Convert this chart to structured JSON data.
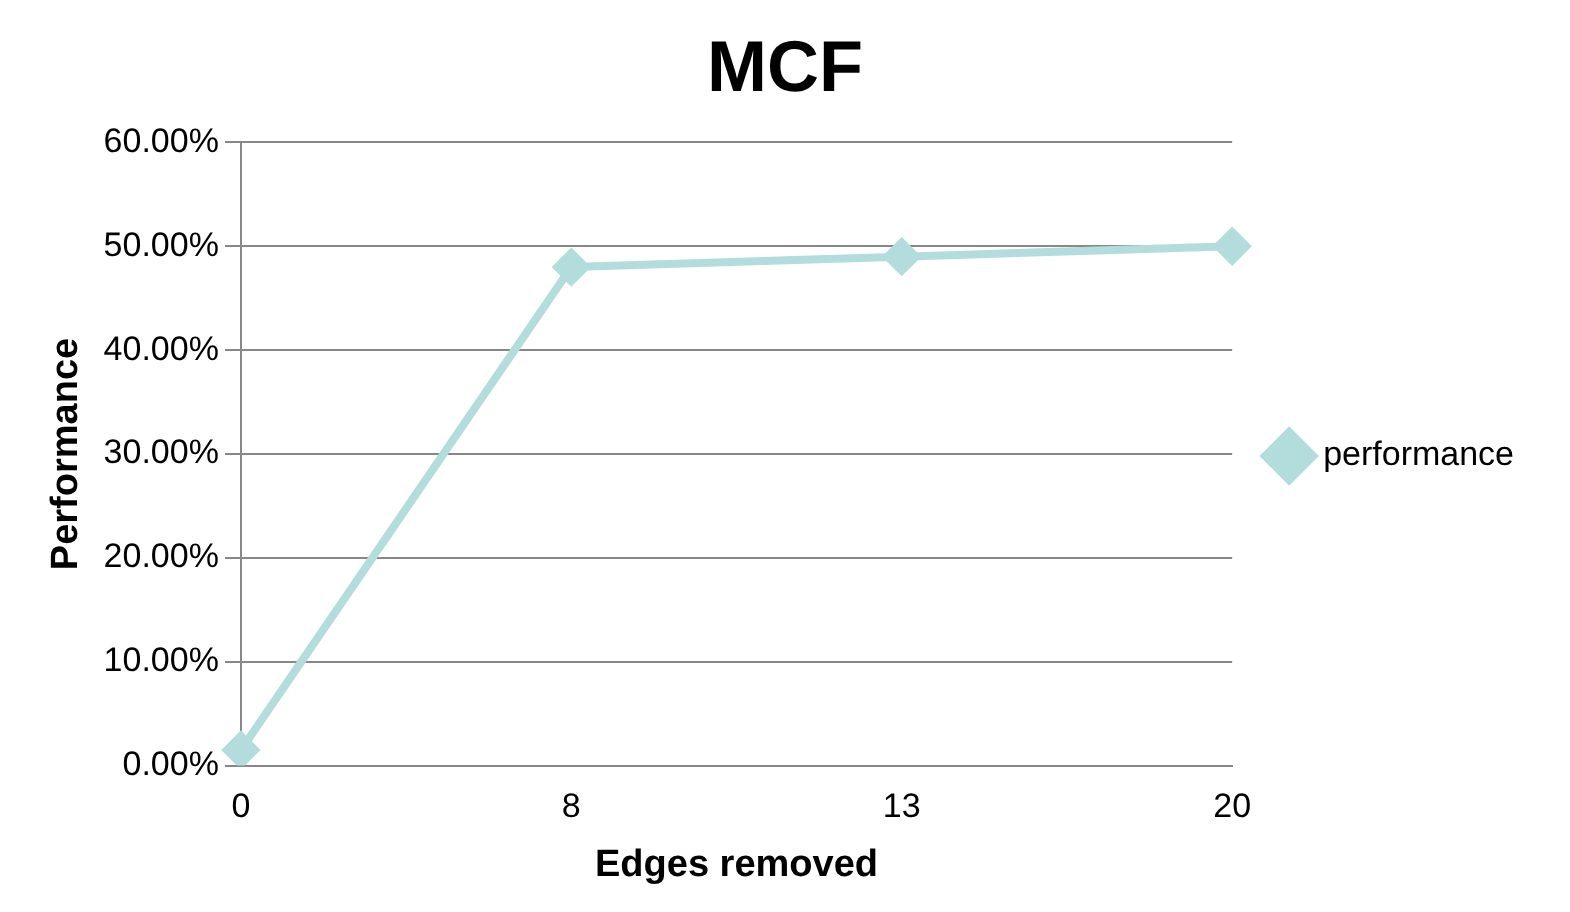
{
  "chart_data": {
    "type": "line",
    "title": "MCF",
    "xlabel": "Edges removed",
    "ylabel": "Performance",
    "categories": [
      "0",
      "8",
      "13",
      "20"
    ],
    "series": [
      {
        "name": "performance",
        "color": "#b3dcdc",
        "values": [
          1.5,
          48,
          49,
          50
        ]
      }
    ],
    "ylim": [
      0,
      60
    ],
    "yticks": [
      {
        "value": 0,
        "label": "0.00%"
      },
      {
        "value": 10,
        "label": "10.00%"
      },
      {
        "value": 20,
        "label": "20.00%"
      },
      {
        "value": 30,
        "label": "30.00%"
      },
      {
        "value": 40,
        "label": "40.00%"
      },
      {
        "value": 50,
        "label": "50.00%"
      },
      {
        "value": 60,
        "label": "60.00%"
      }
    ],
    "grid": "y",
    "legend": "right",
    "marker": "diamond",
    "line_style": "solid"
  }
}
